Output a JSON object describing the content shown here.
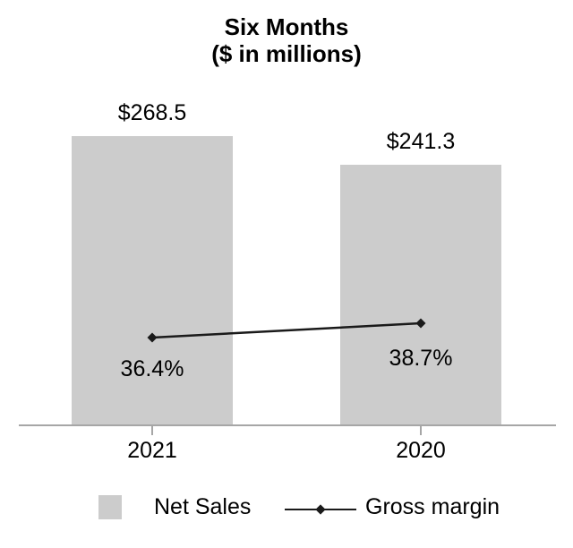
{
  "chart": {
    "title": "Six Months",
    "subtitle": "($ in millions)"
  },
  "chart_data": {
    "type": "bar",
    "title": "Six Months ($ in millions)",
    "xlabel": "",
    "ylabel": "",
    "categories": [
      "2021",
      "2020"
    ],
    "series": [
      {
        "name": "Net Sales",
        "type": "bar",
        "values": [
          268.5,
          241.3
        ],
        "labels": [
          "$268.5",
          "$241.3"
        ],
        "color": "#CCCCCC"
      },
      {
        "name": "Gross margin",
        "type": "line",
        "values": [
          36.4,
          38.7
        ],
        "labels": [
          "36.4%",
          "38.7%"
        ],
        "color": "#1A1A1A",
        "marker": "diamond"
      }
    ],
    "grid": false,
    "legend_position": "bottom",
    "axis_color": "#A6A6A6",
    "background_color": "#FFFFFF"
  },
  "legend": {
    "items": [
      {
        "label": "Net Sales",
        "swatch": "square",
        "color": "#CCCCCC"
      },
      {
        "label": "Gross margin",
        "swatch": "line-diamond",
        "color": "#1A1A1A"
      }
    ]
  }
}
